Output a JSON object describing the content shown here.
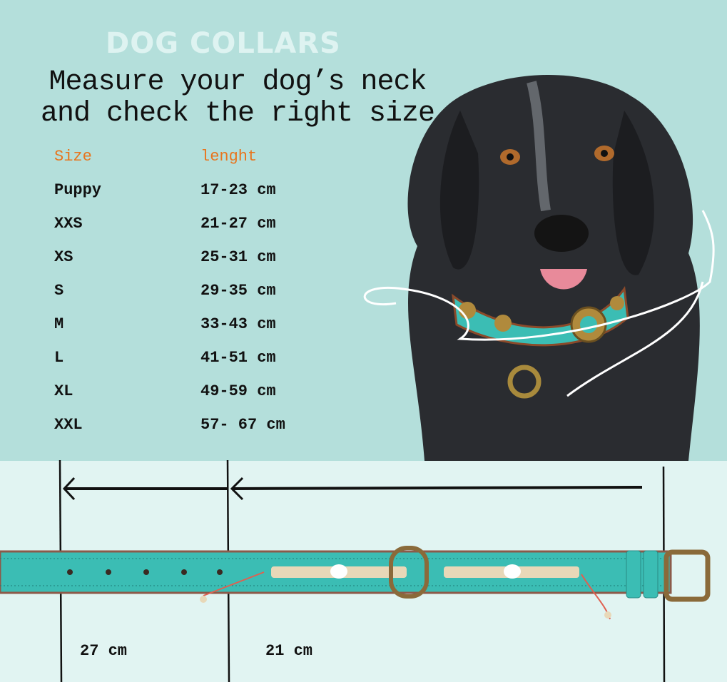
{
  "brand": "DOG COLLARS",
  "headline": {
    "line1": "Measure your dog’s neck",
    "line2": "and check the right size"
  },
  "table": {
    "headers": {
      "size": "Size",
      "length": "lenght"
    },
    "rows": [
      {
        "size": "Puppy",
        "length": "17-23 cm"
      },
      {
        "size": "XXS",
        "length": "21-27 cm"
      },
      {
        "size": "XS",
        "length": "25-31 cm"
      },
      {
        "size": "S",
        "length": "29-35 cm"
      },
      {
        "size": "M",
        "length": "33-43 cm"
      },
      {
        "size": "L",
        "length": "41-51 cm"
      },
      {
        "size": "XL",
        "length": "49-59 cm"
      },
      {
        "size": "XXL",
        "length": "57- 67 cm"
      }
    ]
  },
  "measurements": {
    "first": "27 cm",
    "second": "21 cm"
  },
  "colors": {
    "background_top": "#b4dfdb",
    "background_bottom": "#e1f4f2",
    "header_accent": "#e8741c",
    "collar": "#3bbdb4"
  }
}
